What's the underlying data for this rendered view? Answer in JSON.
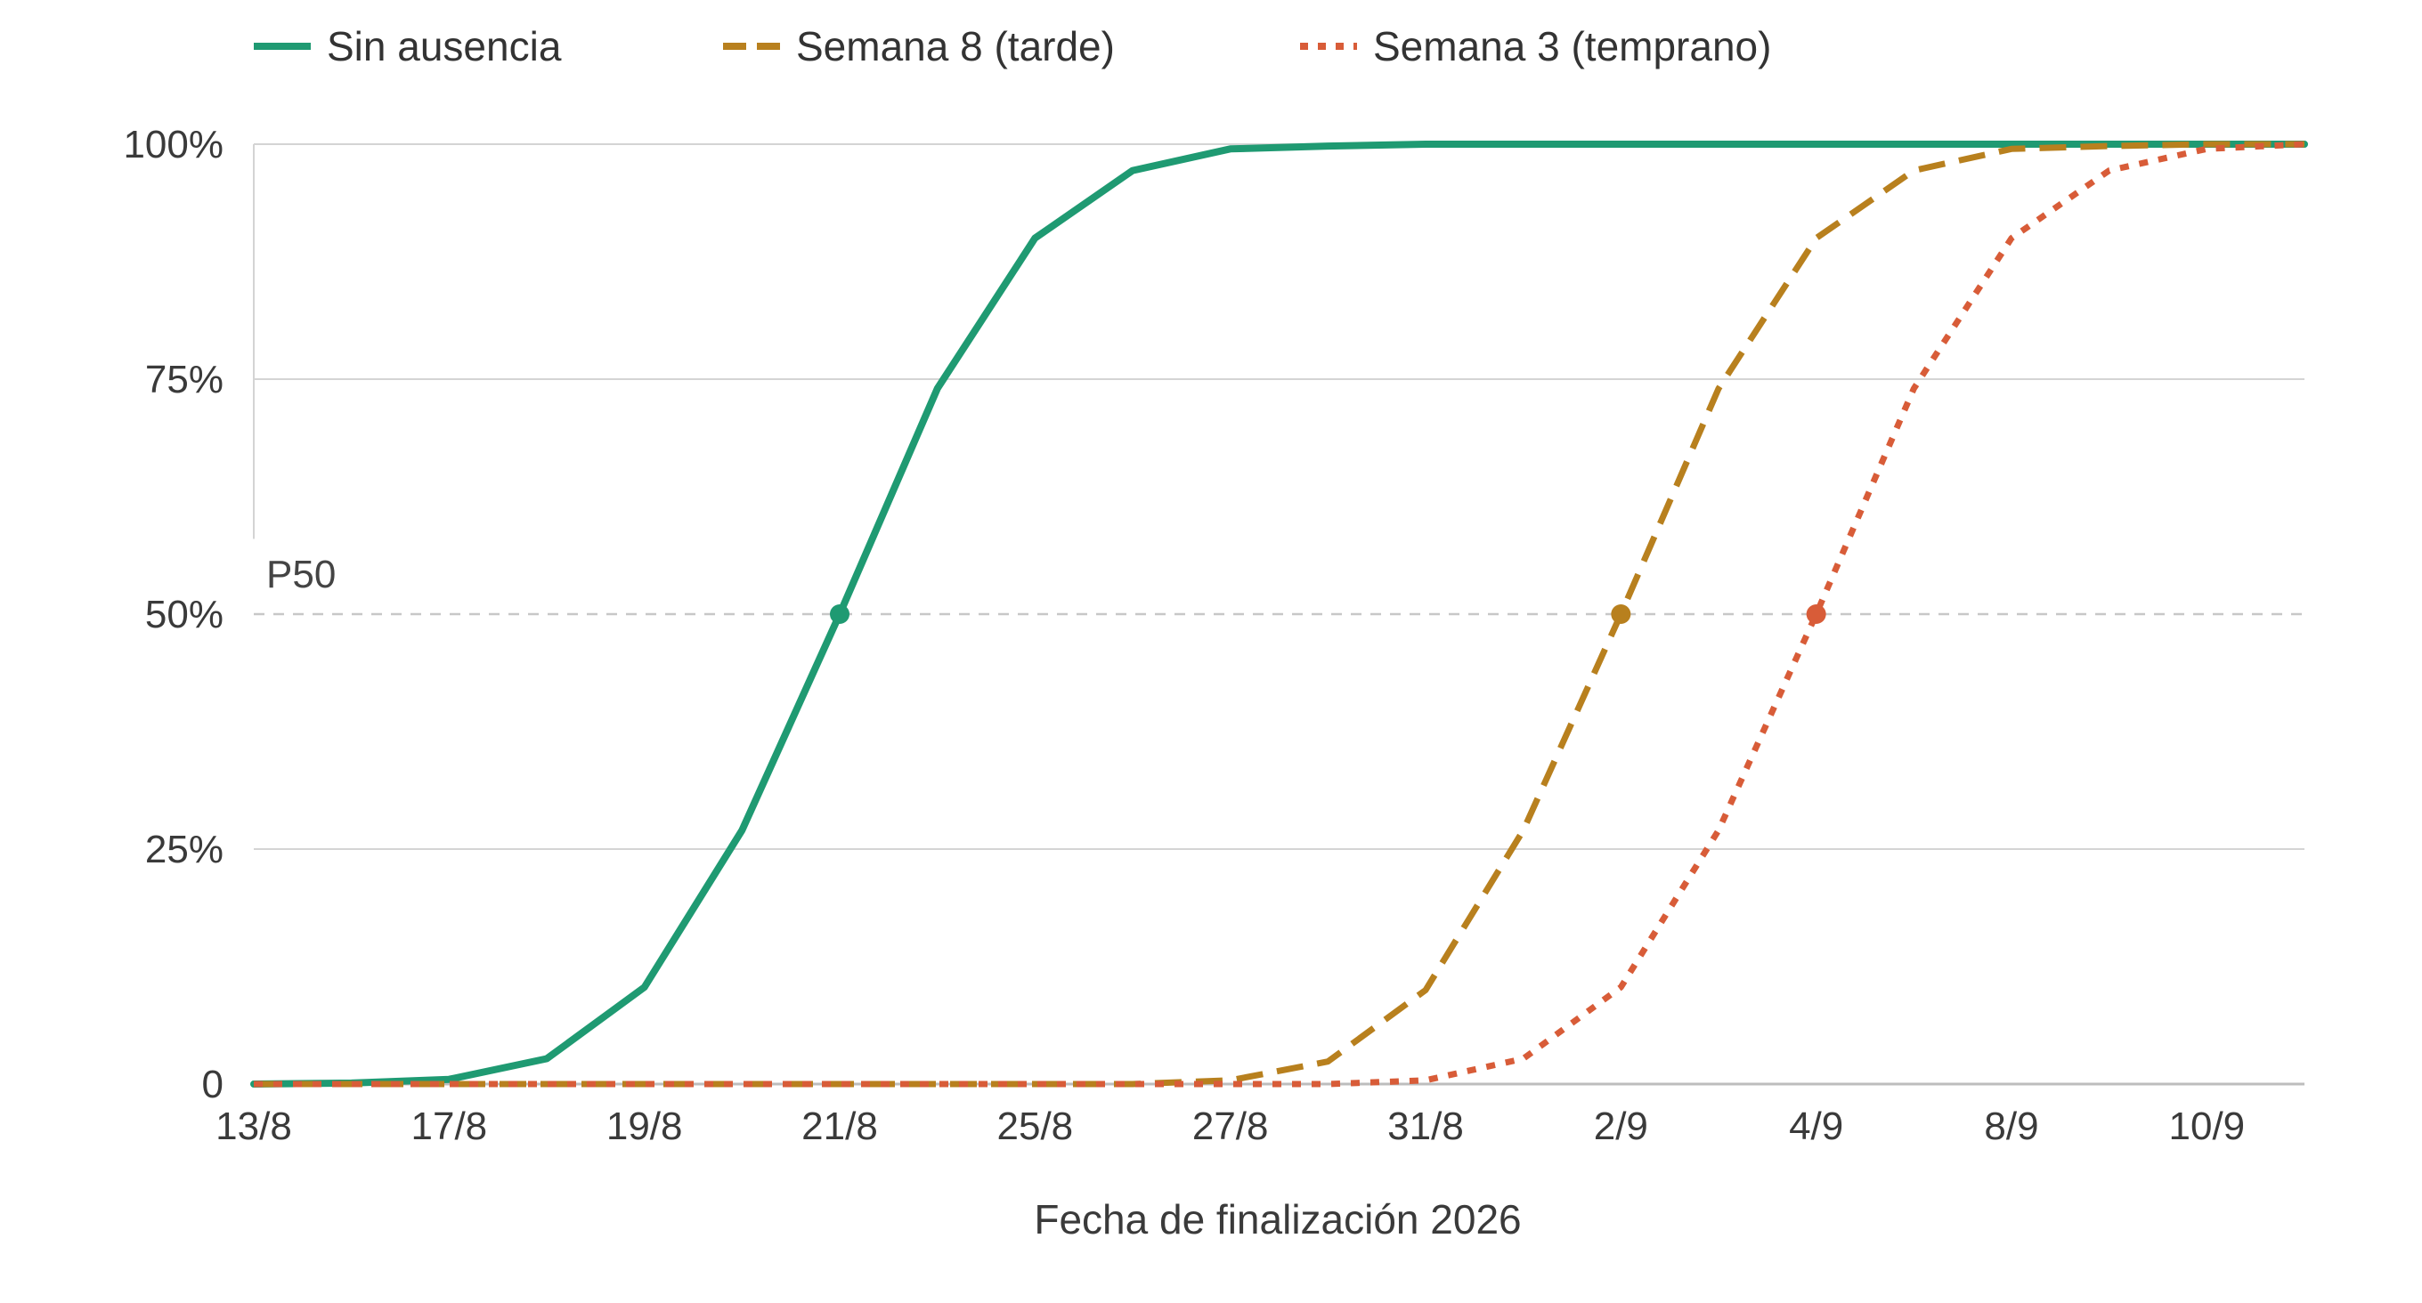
{
  "chart_data": {
    "type": "line",
    "title": "",
    "xlabel": "Fecha de finalización 2026",
    "ylabel": "",
    "x_tick_labels": [
      "13/8",
      "17/8",
      "19/8",
      "21/8",
      "25/8",
      "27/8",
      "31/8",
      "2/9",
      "4/9",
      "8/9",
      "10/9"
    ],
    "y_tick_labels": [
      "0",
      "25%",
      "50%",
      "75%",
      "100%"
    ],
    "y_ticks": [
      0,
      25,
      50,
      75,
      100
    ],
    "ylim": [
      0,
      100
    ],
    "x": [
      0,
      0.5,
      1,
      1.5,
      2,
      2.5,
      3,
      3.5,
      4,
      4.5,
      5,
      5.5,
      6,
      6.5,
      7,
      7.5,
      8,
      8.5,
      9,
      9.5,
      10,
      10.5
    ],
    "xlim": [
      0,
      10.5
    ],
    "reference_line": {
      "label": "P50",
      "value": 50,
      "style": "dashed"
    },
    "legend_position": "top",
    "grid": true,
    "series": [
      {
        "name": "Sin ausencia",
        "color": "#1f9a72",
        "dash": "solid",
        "values": [
          0,
          0.1,
          0.5,
          2.7,
          10.3,
          27,
          50,
          74,
          90,
          97.2,
          99.5,
          99.8,
          100,
          100,
          100,
          100,
          100,
          100,
          100,
          100,
          100,
          100
        ],
        "p50_x": 3
      },
      {
        "name": "Semana 8 (tarde)",
        "color": "#b8801e",
        "dash": "dashed",
        "values": [
          0,
          0,
          0,
          0,
          0,
          0,
          0,
          0,
          0,
          0,
          0.4,
          2.4,
          10,
          27,
          50,
          74,
          90,
          97.2,
          99.5,
          99.8,
          100,
          100
        ],
        "p50_x": 7
      },
      {
        "name": "Semana 3 (temprano)",
        "color": "#d85c38",
        "dash": "dotted",
        "values": [
          0,
          0,
          0,
          0,
          0,
          0,
          0,
          0,
          0,
          0,
          0,
          0,
          0.4,
          2.7,
          10.3,
          27,
          50,
          74,
          90,
          97.2,
          99.5,
          100
        ],
        "p50_x": 8
      }
    ]
  }
}
